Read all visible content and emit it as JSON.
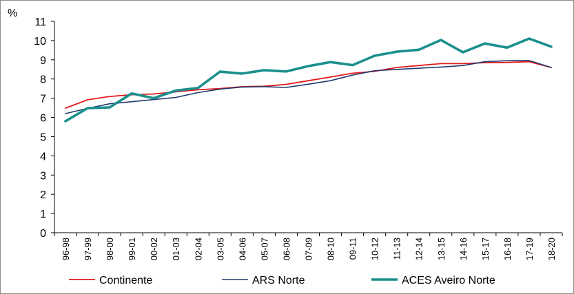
{
  "chart_data": {
    "type": "line",
    "title": "",
    "xlabel": "",
    "ylabel": "%",
    "ylim": [
      0,
      11
    ],
    "yticks": [
      0,
      1,
      2,
      3,
      4,
      5,
      6,
      7,
      8,
      9,
      10,
      11
    ],
    "grid": false,
    "legend_position": "bottom",
    "categories": [
      "96-98",
      "97-99",
      "98-00",
      "99-01",
      "00-02",
      "01-03",
      "02-04",
      "03-05",
      "04-06",
      "05-07",
      "06-08",
      "07-09",
      "08-10",
      "09-11",
      "10-12",
      "11-13",
      "12-14",
      "13-15",
      "14-16",
      "15-17",
      "16-18",
      "17-19",
      "18-20"
    ],
    "series": [
      {
        "name": "Continente",
        "color": "#e31a1c",
        "width": 1.8,
        "values": [
          6.48,
          6.92,
          7.09,
          7.18,
          7.22,
          7.33,
          7.44,
          7.5,
          7.6,
          7.62,
          7.72,
          7.91,
          8.1,
          8.3,
          8.4,
          8.6,
          8.7,
          8.8,
          8.8,
          8.85,
          8.86,
          8.9,
          8.6
        ]
      },
      {
        "name": "ARS Norte",
        "color": "#1f3a6d",
        "width": 1.6,
        "values": [
          6.2,
          6.47,
          6.71,
          6.82,
          6.93,
          7.04,
          7.29,
          7.47,
          7.58,
          7.6,
          7.56,
          7.73,
          7.91,
          8.2,
          8.43,
          8.5,
          8.56,
          8.62,
          8.7,
          8.9,
          8.95,
          8.96,
          8.6
        ]
      },
      {
        "name": "ACES Aveiro Norte",
        "color": "#1a8f8c",
        "width": 3.6,
        "values": [
          5.8,
          6.48,
          6.52,
          7.25,
          7.0,
          7.4,
          7.53,
          8.38,
          8.28,
          8.46,
          8.39,
          8.67,
          8.88,
          8.72,
          9.21,
          9.42,
          9.52,
          10.03,
          9.39,
          9.85,
          9.63,
          10.1,
          9.68
        ]
      }
    ]
  }
}
